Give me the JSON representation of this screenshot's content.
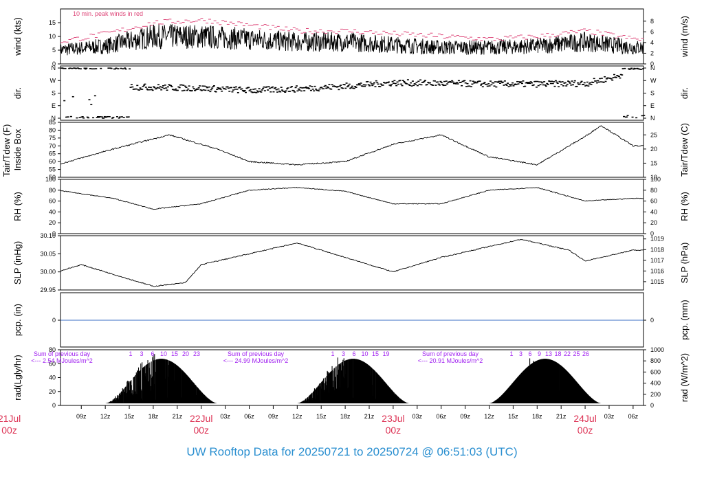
{
  "title": "UW Rooftop Data for 20250721  to  20250724 @ 06:51:03  (UTC)",
  "colors": {
    "peak": "#dd4477",
    "day_label": "#dd3355",
    "sum_text": "#a020f0",
    "pcp_line": "#3b6fc4",
    "title": "#2a8fd0",
    "data": "#000000"
  },
  "x_axis": {
    "hour_ticks": [
      "09z",
      "12z",
      "15z",
      "18z",
      "21z",
      "22Jul",
      "03z",
      "06z",
      "09z",
      "12z",
      "15z",
      "18z",
      "21z",
      "23Jul",
      "03z",
      "06z",
      "09z",
      "12z",
      "15z",
      "18z",
      "21z",
      "24Jul",
      "03z",
      "06z"
    ],
    "day_labels": [
      {
        "date": "21Jul",
        "zulu": "00z"
      },
      {
        "date": "22Jul",
        "zulu": "00z"
      },
      {
        "date": "23Jul",
        "zulu": "00z"
      },
      {
        "date": "24Jul",
        "zulu": "00z"
      }
    ]
  },
  "chart_data": [
    {
      "type": "line",
      "name": "wind",
      "ylabel": "wind (kts)",
      "ylabel_right": "wind (m/s)",
      "ylim": [
        0,
        20
      ],
      "yticks": [
        0,
        5,
        10,
        15
      ],
      "yticks_right": [
        0,
        2,
        4,
        6,
        8
      ],
      "annotation": "10 min. peak winds in red",
      "x_hours": [
        0,
        6,
        12,
        18,
        24,
        30,
        36,
        42,
        48,
        54,
        60,
        66,
        72,
        78
      ],
      "y": [
        4.5,
        5,
        6.5,
        10,
        10,
        9,
        8,
        8,
        7,
        6,
        6,
        6.5,
        8,
        6
      ],
      "peak_y": [
        7,
        8,
        11,
        15,
        16,
        14,
        12,
        12,
        11,
        10,
        9,
        10,
        12,
        9
      ]
    },
    {
      "type": "scatter",
      "name": "dir.",
      "ylabel": "dir.",
      "ylabel_right": "dir.",
      "yticks": [
        "N",
        "E",
        "S",
        "W",
        "N"
      ],
      "yticks_right": [
        "N",
        "E",
        "S",
        "W",
        "N"
      ],
      "x_hours": [
        0,
        6,
        9,
        15,
        24,
        30,
        36,
        42,
        48,
        54,
        60,
        66,
        72,
        76,
        78
      ],
      "y_deg": [
        360,
        360,
        225,
        225,
        215,
        200,
        210,
        230,
        255,
        250,
        245,
        245,
        250,
        300,
        360
      ]
    },
    {
      "type": "line",
      "name": "Tair",
      "ylabel": "Tair/Tdew (F)",
      "ylabel2": "Inside Box",
      "ylabel_right": "Tair/Tdew (C)",
      "ylim": [
        50,
        85
      ],
      "yticks": [
        50,
        55,
        60,
        65,
        70,
        75,
        80,
        85
      ],
      "yticks_right": [
        10,
        15,
        20,
        25
      ],
      "x_hours": [
        0,
        6,
        13,
        20,
        26,
        30,
        36,
        42,
        48,
        54,
        60,
        66,
        72,
        74,
        78
      ],
      "y": [
        61,
        58,
        68,
        77,
        68,
        60,
        58,
        60,
        71,
        77,
        63,
        58,
        76,
        83,
        70
      ]
    },
    {
      "type": "line",
      "name": "RH",
      "ylabel": "RH (%)",
      "ylabel_right": "RH (%)",
      "ylim": [
        0,
        100
      ],
      "yticks": [
        0,
        20,
        40,
        60,
        80,
        100
      ],
      "yticks_right": [
        0,
        20,
        40,
        60,
        80,
        100
      ],
      "x_hours": [
        0,
        6,
        13,
        18,
        24,
        30,
        36,
        42,
        48,
        54,
        60,
        66,
        72,
        78
      ],
      "y": [
        73,
        80,
        65,
        45,
        55,
        80,
        85,
        78,
        55,
        55,
        80,
        85,
        60,
        65
      ]
    },
    {
      "type": "line",
      "name": "SLP",
      "ylabel": "SLP (inHg)",
      "ylabel_right": "SLP (hPa)",
      "ylim": [
        29.95,
        30.1
      ],
      "yticks": [
        29.95,
        30.0,
        30.05,
        30.1
      ],
      "yticks_right": [
        1015,
        1016,
        1017,
        1018,
        1019
      ],
      "x_hours": [
        0,
        6,
        9,
        18,
        22,
        24,
        30,
        36,
        42,
        48,
        54,
        60,
        64,
        70,
        72,
        78
      ],
      "y": [
        29.99,
        30.0,
        30.02,
        29.96,
        29.97,
        30.02,
        30.05,
        30.08,
        30.04,
        30.0,
        30.04,
        30.07,
        30.09,
        30.06,
        30.03,
        30.06
      ]
    },
    {
      "type": "line",
      "name": "pcp.",
      "ylabel": "pcp. (in)",
      "ylabel_right": "pcp. (mm)",
      "yticks": [
        0
      ],
      "yticks_right": [
        0
      ],
      "x_hours": [
        0,
        78
      ],
      "y": [
        0,
        0
      ]
    },
    {
      "type": "area",
      "name": "rad",
      "ylabel": "rad(Lgly/hr)",
      "ylabel_right": "rad (W/m^2)",
      "ylim": [
        0,
        80
      ],
      "yticks": [
        0,
        20,
        40,
        60,
        80
      ],
      "yticks_right": [
        0,
        200,
        400,
        600,
        800,
        1000
      ],
      "daily_sums": [
        {
          "line1": "Sum of previous day",
          "line2": "<--- 2.54 MJoules/m^2"
        },
        {
          "line1": "Sum of previous day",
          "line2": "<--- 24.99 MJoules/m^2"
        },
        {
          "line1": "Sum of previous day",
          "line2": "<--- 20.91 MJoules/m^2"
        }
      ],
      "hour_markers": [
        [
          "1",
          "3",
          "6",
          "10",
          "15",
          "20",
          "23"
        ],
        [
          "1",
          "3",
          "6",
          "10",
          "15",
          "19"
        ],
        [
          "1",
          "3",
          "6",
          "9",
          "13",
          "18",
          "22",
          "25",
          "26"
        ]
      ]
    }
  ]
}
